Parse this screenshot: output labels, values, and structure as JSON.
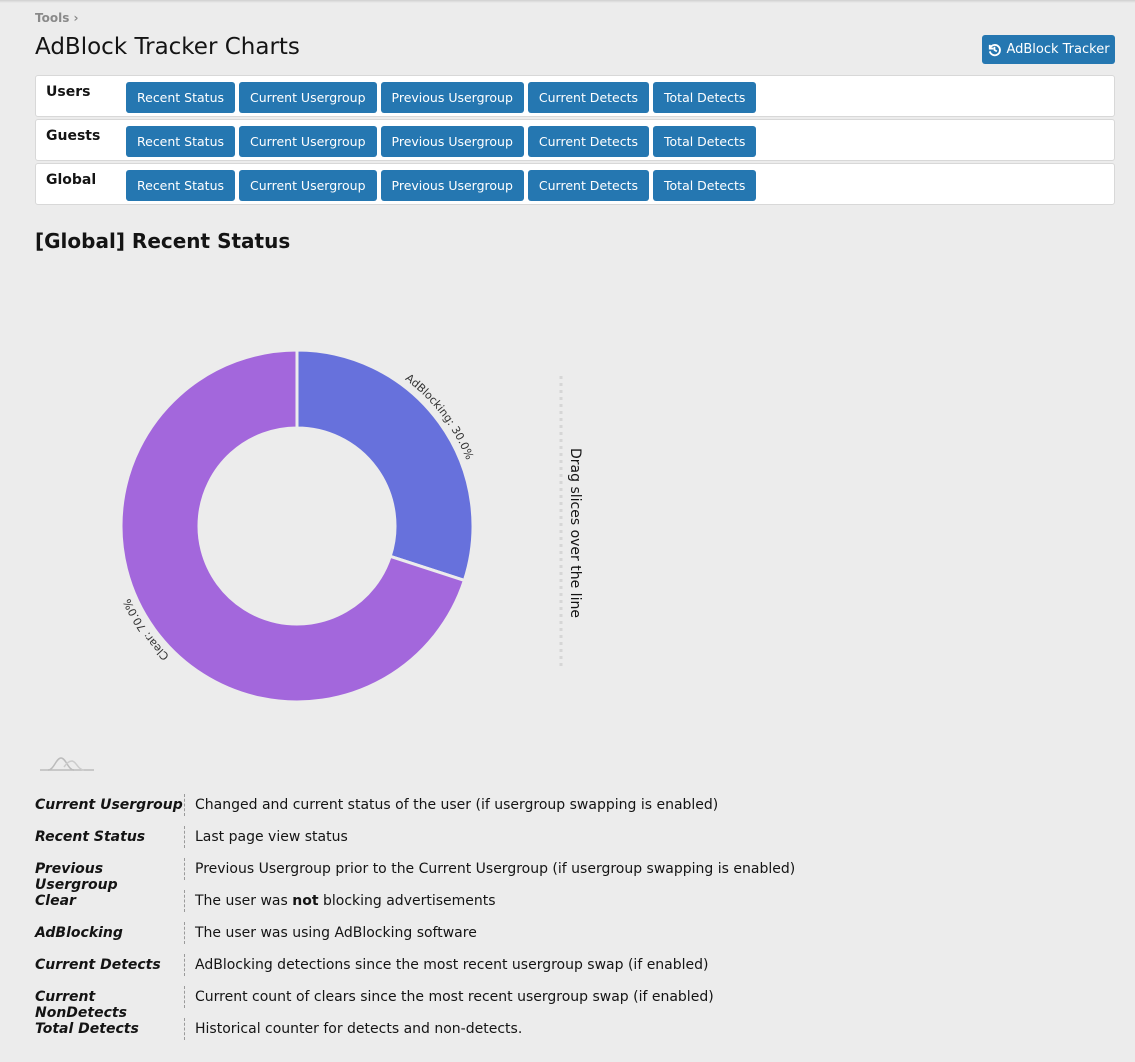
{
  "breadcrumb": {
    "label": "Tools",
    "sep": "›"
  },
  "header": {
    "title": "AdBlock Tracker Charts",
    "button_label": "AdBlock Tracker",
    "button_icon": "history-icon"
  },
  "rows": [
    {
      "label": "Users",
      "buttons": [
        "Recent Status",
        "Current Usergroup",
        "Previous Usergroup",
        "Current Detects",
        "Total Detects"
      ]
    },
    {
      "label": "Guests",
      "buttons": [
        "Recent Status",
        "Current Usergroup",
        "Previous Usergroup",
        "Current Detects",
        "Total Detects"
      ]
    },
    {
      "label": "Global",
      "buttons": [
        "Recent Status",
        "Current Usergroup",
        "Previous Usergroup",
        "Current Detects",
        "Total Detects"
      ]
    }
  ],
  "chart_title": "[Global] Recent Status",
  "chart_data": {
    "type": "pie",
    "title": "[Global] Recent Status",
    "slices": [
      {
        "name": "AdBlocking",
        "value": 30.0,
        "label": "AdBlocking: 30.0%",
        "color": "#6771dc"
      },
      {
        "name": "Clear",
        "value": 70.0,
        "label": "Clear: 70.0%",
        "color": "#a367dc"
      }
    ],
    "drag_hint": "Drag slices over the line"
  },
  "definitions": [
    {
      "term": "Current Usergroup",
      "desc": "Changed and current status of the user (if usergroup swapping is enabled)"
    },
    {
      "term": "Recent Status",
      "desc": "Last page view status"
    },
    {
      "term": "Previous Usergroup",
      "desc": "Previous Usergroup prior to the Current Usergroup (if usergroup swapping is enabled)"
    },
    {
      "term": "Clear",
      "desc_pre": "The user was ",
      "desc_bold": "not",
      "desc_post": " blocking advertisements"
    },
    {
      "term": "AdBlocking",
      "desc": "The user was using AdBlocking software"
    },
    {
      "term": "Current Detects",
      "desc": "AdBlocking detections since the most recent usergroup swap (if enabled)"
    },
    {
      "term": "Current NonDetects",
      "desc": "Current count of clears since the most recent usergroup swap (if enabled)"
    },
    {
      "term": "Total Detects",
      "desc": "Historical counter for detects and non-detects."
    }
  ]
}
